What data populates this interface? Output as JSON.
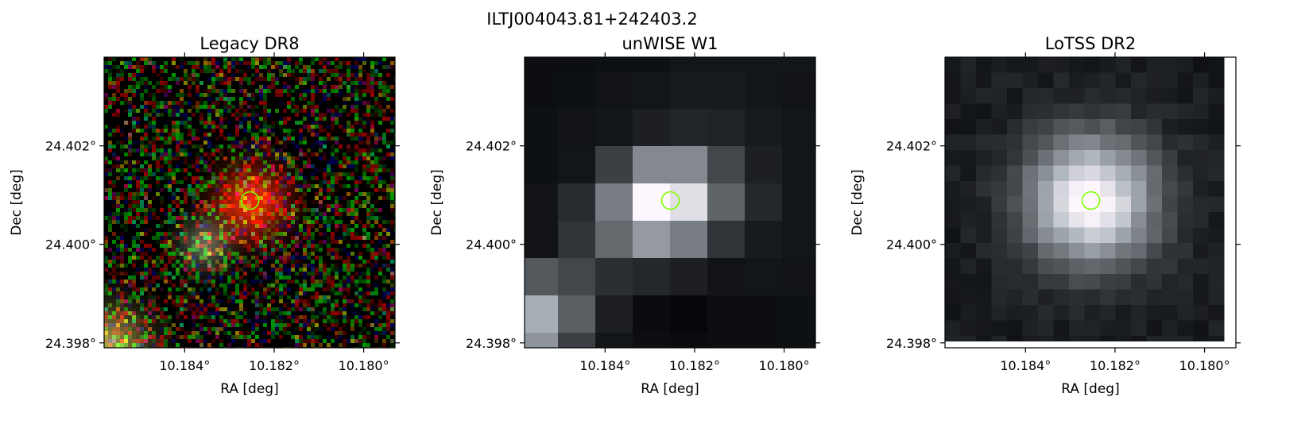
{
  "title": "ILTJ004043.81+242403.2",
  "chart_data": [
    {
      "type": "image",
      "title": "Legacy DR8",
      "xlabel": "RA [deg]",
      "ylabel": "Dec [deg]",
      "xlim": [
        10.1858,
        10.1793
      ],
      "ylim": [
        24.3979,
        24.4038
      ],
      "xticks": [
        {
          "value": 10.184,
          "label": "10.184°"
        },
        {
          "value": 10.182,
          "label": "10.182°"
        },
        {
          "value": 10.18,
          "label": "10.180°"
        }
      ],
      "yticks": [
        {
          "value": 24.398,
          "label": "24.398°"
        },
        {
          "value": 24.4,
          "label": "24.400°"
        },
        {
          "value": 24.402,
          "label": "24.402°"
        }
      ],
      "source": {
        "ra": 10.18254,
        "dec": 24.40089
      },
      "marker_color": "#7fff00"
    },
    {
      "type": "image",
      "title": "unWISE W1",
      "xlabel": "RA [deg]",
      "ylabel": "Dec [deg]",
      "xlim": [
        10.1858,
        10.1793
      ],
      "ylim": [
        24.3979,
        24.4038
      ],
      "xticks": [
        {
          "value": 10.184,
          "label": "10.184°"
        },
        {
          "value": 10.182,
          "label": "10.182°"
        },
        {
          "value": 10.18,
          "label": "10.180°"
        }
      ],
      "yticks": [
        {
          "value": 24.398,
          "label": "24.398°"
        },
        {
          "value": 24.4,
          "label": "24.400°"
        },
        {
          "value": 24.402,
          "label": "24.402°"
        }
      ],
      "source": {
        "ra": 10.18254,
        "dec": 24.40089
      },
      "marker_color": "#7fff00"
    },
    {
      "type": "image",
      "title": "LoTSS DR2",
      "xlabel": "RA [deg]",
      "ylabel": "Dec [deg]",
      "xlim": [
        10.1858,
        10.1793
      ],
      "ylim": [
        24.3979,
        24.4038
      ],
      "xticks": [
        {
          "value": 10.184,
          "label": "10.184°"
        },
        {
          "value": 10.182,
          "label": "10.182°"
        },
        {
          "value": 10.18,
          "label": "10.180°"
        }
      ],
      "yticks": [
        {
          "value": 24.398,
          "label": "24.398°"
        },
        {
          "value": 24.4,
          "label": "24.400°"
        },
        {
          "value": 24.402,
          "label": "24.402°"
        }
      ],
      "source": {
        "ra": 10.18254,
        "dec": 24.40089
      },
      "marker_color": "#7fff00"
    }
  ]
}
